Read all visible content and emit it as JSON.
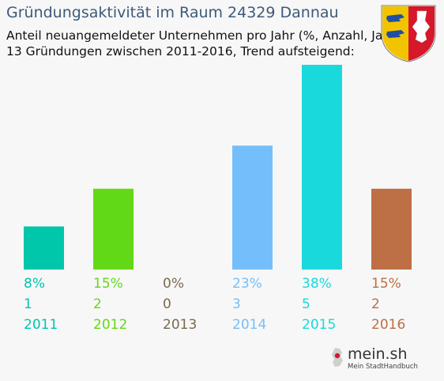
{
  "header": {
    "title": "Gründungsaktivität im Raum 24329 Dannau",
    "subtitle1": "Anteil neuangemeldeter Unternehmen pro Jahr (%, Anzahl, Jahr)",
    "subtitle2": "13 Gründungen zwischen 2011-2016, Trend aufsteigend:"
  },
  "crest": {
    "icon": "schleswig-holstein-coat-of-arms-icon"
  },
  "logo": {
    "name": "mein.sh",
    "tagline": "Mein StadtHandbuch",
    "icon": "germany-map-pin-icon"
  },
  "chart_data": {
    "type": "bar",
    "categories": [
      "2011",
      "2012",
      "2013",
      "2014",
      "2015",
      "2016"
    ],
    "values": [
      8,
      15,
      0,
      23,
      38,
      15
    ],
    "percent_labels": [
      "8%",
      "15%",
      "0%",
      "23%",
      "38%",
      "15%"
    ],
    "counts": [
      "1",
      "2",
      "0",
      "3",
      "5",
      "2"
    ],
    "colors": [
      "#00c6aa",
      "#62d916",
      "#7a6a4f",
      "#74bffb",
      "#1ad9dc",
      "#bd6f45"
    ],
    "title": "Gründungsaktivität im Raum 24329 Dannau",
    "xlabel": "",
    "ylabel": "",
    "ylim": [
      0,
      38
    ],
    "grid": false,
    "legend": "none"
  }
}
